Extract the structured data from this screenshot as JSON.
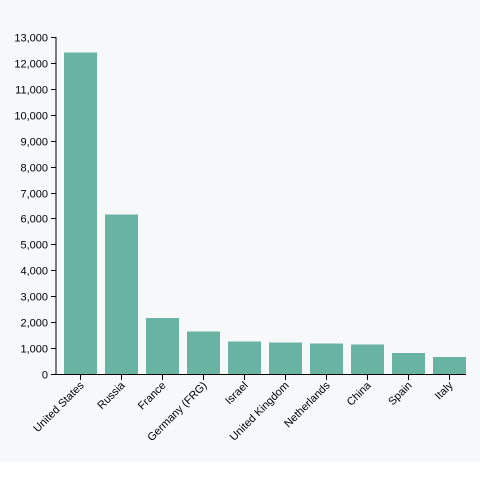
{
  "chart_data": {
    "type": "bar",
    "title": "",
    "xlabel": "",
    "ylabel": "",
    "categories": [
      "United States",
      "Russia",
      "France",
      "Germany (FRG)",
      "Israel",
      "United Kingdom",
      "Netherlands",
      "China",
      "Spain",
      "Italy"
    ],
    "values": [
      12394,
      6148,
      2165,
      1643,
      1263,
      1214,
      1178,
      1141,
      815,
      659
    ],
    "ylim": [
      0,
      13000
    ],
    "y_ticks": [
      0,
      1000,
      2000,
      3000,
      4000,
      5000,
      6000,
      7000,
      8000,
      9000,
      10000,
      11000,
      12000,
      13000
    ],
    "y_tick_labels": [
      "0",
      "1,000",
      "2,000",
      "3,000",
      "4,000",
      "5,000",
      "6,000",
      "7,000",
      "8,000",
      "9,000",
      "10,000",
      "11,000",
      "12,000",
      "13,000"
    ],
    "bar_color": "#69b3a2",
    "background_color": "#f7f8fa",
    "grid": false,
    "legend": "none"
  }
}
